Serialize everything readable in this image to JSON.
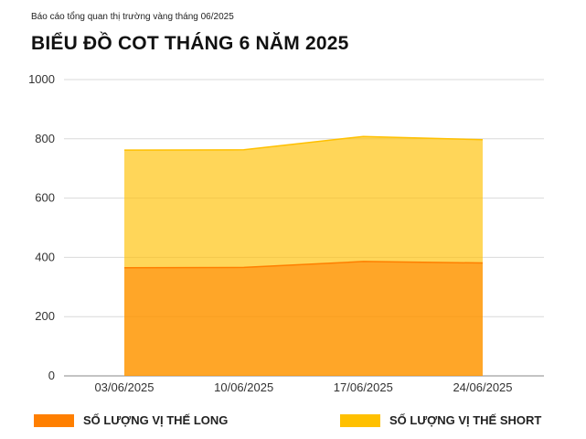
{
  "header": {
    "subtitle": "Báo cáo tổng quan thị trường vàng tháng 06/2025",
    "title": "BIỂU ĐỒ COT THÁNG 6 NĂM 2025"
  },
  "chart_data": {
    "type": "area",
    "stacked": false,
    "title": "BIỂU ĐỒ COT THÁNG 6 NĂM 2025",
    "xlabel": "",
    "ylabel": "",
    "categories": [
      "03/06/2025",
      "10/06/2025",
      "17/06/2025",
      "24/06/2025"
    ],
    "ylim": [
      0,
      1000
    ],
    "yticks": [
      0,
      200,
      400,
      600,
      800,
      1000
    ],
    "grid": true,
    "legend_position": "bottom",
    "series": [
      {
        "name": "SỐ LƯỢNG VỊ THẾ SHORT",
        "values": [
          762,
          763,
          808,
          797
        ],
        "color": "#FFC000"
      },
      {
        "name": "SỐ LƯỢNG VỊ THẾ LONG",
        "values": [
          365,
          366,
          386,
          381
        ],
        "color": "#FF7F00"
      }
    ]
  },
  "legend": {
    "long_label": "SỐ LƯỢNG VỊ THẾ LONG",
    "short_label": "SỐ LƯỢNG VỊ THẾ SHORT",
    "long_color": "#FF7F00",
    "short_color": "#FFC000"
  }
}
